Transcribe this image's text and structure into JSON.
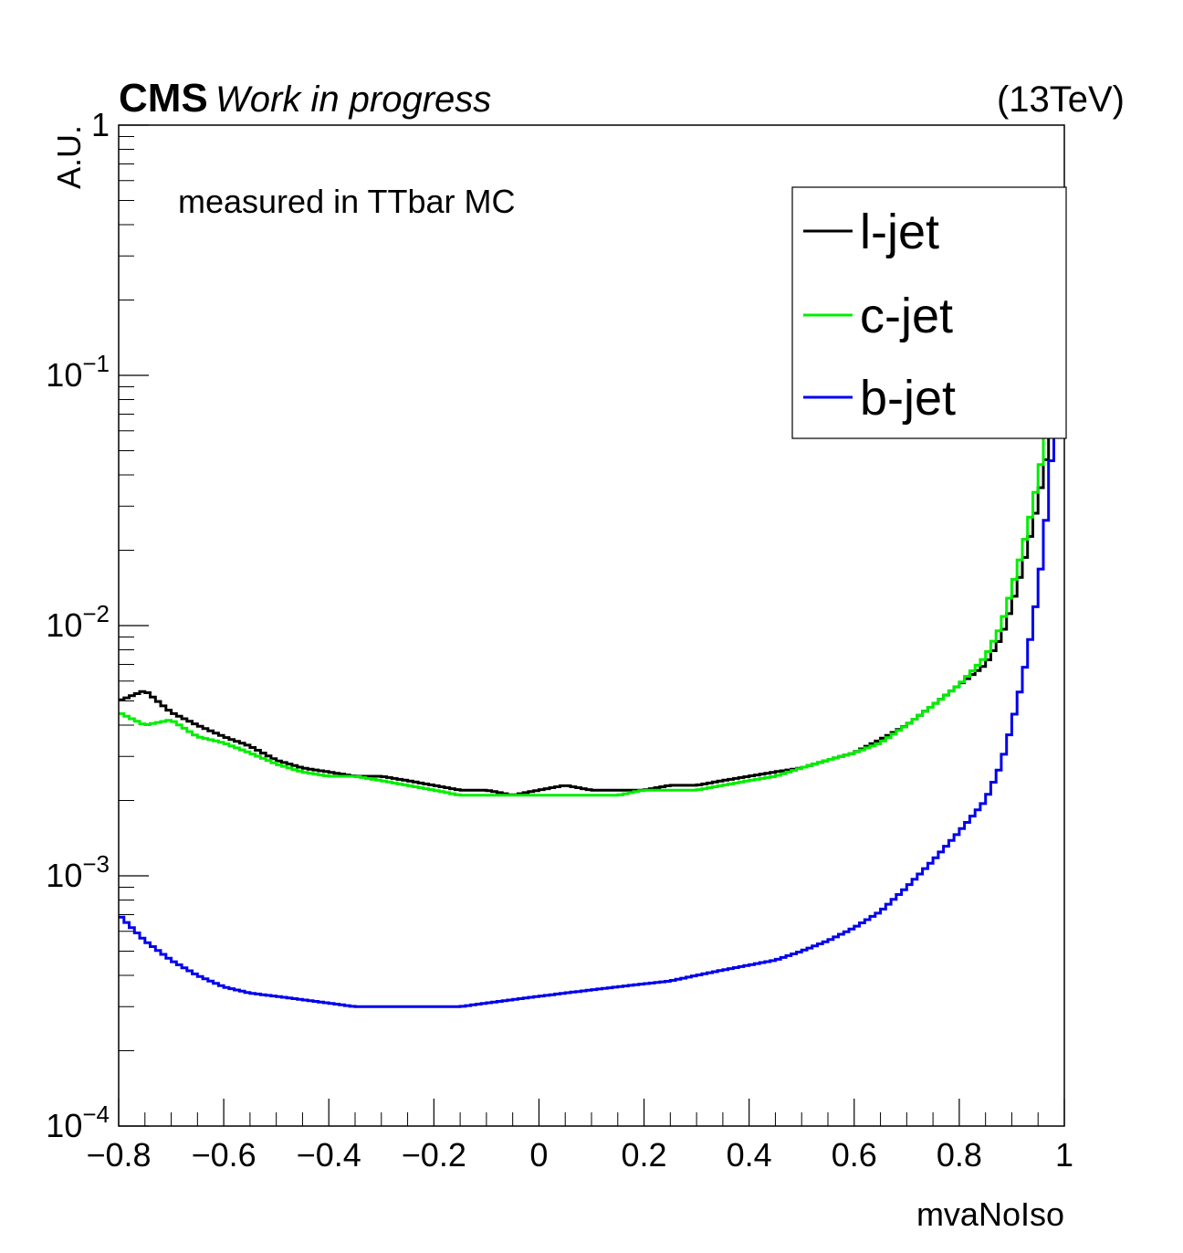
{
  "header": {
    "experiment": "CMS",
    "status": "Work in progress",
    "energy": "(13TeV)"
  },
  "annotation": "measured in TTbar MC",
  "chart_data": {
    "type": "line",
    "style": "step-histogram",
    "xlabel": "mvaNoIso",
    "ylabel": "A.U.",
    "xlim": [
      -0.8,
      1.0
    ],
    "ylim": [
      0.0001,
      1
    ],
    "yscale": "log",
    "x_ticks": [
      -0.8,
      -0.6,
      -0.4,
      -0.2,
      0,
      0.2,
      0.4,
      0.6,
      0.8,
      1
    ],
    "x_tick_labels": [
      "−0.8",
      "−0.6",
      "−0.4",
      "−0.2",
      "0",
      "0.2",
      "0.4",
      "0.6",
      "0.8",
      "1"
    ],
    "y_ticks": [
      {
        "value": 0.0001,
        "base": "10",
        "exp": "−4"
      },
      {
        "value": 0.001,
        "base": "10",
        "exp": "−3"
      },
      {
        "value": 0.01,
        "base": "10",
        "exp": "−2"
      },
      {
        "value": 0.1,
        "base": "10",
        "exp": "−1"
      },
      {
        "value": 1,
        "base": "1",
        "exp": ""
      }
    ],
    "bins": 180,
    "legend_position": "top-right",
    "series": [
      {
        "name": "l-jet",
        "color": "#000000",
        "points": [
          [
            -0.8,
            0.005
          ],
          [
            -0.75,
            0.0055
          ],
          [
            -0.7,
            0.0045
          ],
          [
            -0.65,
            0.004
          ],
          [
            -0.6,
            0.0036
          ],
          [
            -0.55,
            0.0033
          ],
          [
            -0.5,
            0.0029
          ],
          [
            -0.45,
            0.0027
          ],
          [
            -0.4,
            0.0026
          ],
          [
            -0.35,
            0.0025
          ],
          [
            -0.3,
            0.0025
          ],
          [
            -0.25,
            0.0024
          ],
          [
            -0.2,
            0.0023
          ],
          [
            -0.15,
            0.0022
          ],
          [
            -0.1,
            0.0022
          ],
          [
            -0.05,
            0.0021
          ],
          [
            0.0,
            0.0022
          ],
          [
            0.05,
            0.0023
          ],
          [
            0.1,
            0.0022
          ],
          [
            0.15,
            0.0022
          ],
          [
            0.2,
            0.0022
          ],
          [
            0.25,
            0.0023
          ],
          [
            0.3,
            0.0023
          ],
          [
            0.35,
            0.0024
          ],
          [
            0.4,
            0.0025
          ],
          [
            0.45,
            0.0026
          ],
          [
            0.5,
            0.0027
          ],
          [
            0.55,
            0.0029
          ],
          [
            0.6,
            0.0031
          ],
          [
            0.65,
            0.0035
          ],
          [
            0.7,
            0.004
          ],
          [
            0.75,
            0.0048
          ],
          [
            0.8,
            0.0058
          ],
          [
            0.85,
            0.007
          ],
          [
            0.88,
            0.009
          ],
          [
            0.9,
            0.012
          ],
          [
            0.92,
            0.017
          ],
          [
            0.94,
            0.025
          ],
          [
            0.96,
            0.04
          ],
          [
            0.98,
            0.07
          ],
          [
            0.99,
            0.15
          ],
          [
            1.0,
            0.3
          ]
        ]
      },
      {
        "name": "c-jet",
        "color": "#00ee00",
        "points": [
          [
            -0.8,
            0.0045
          ],
          [
            -0.75,
            0.004
          ],
          [
            -0.7,
            0.0042
          ],
          [
            -0.65,
            0.0036
          ],
          [
            -0.6,
            0.0034
          ],
          [
            -0.55,
            0.0031
          ],
          [
            -0.5,
            0.0028
          ],
          [
            -0.45,
            0.0026
          ],
          [
            -0.4,
            0.0025
          ],
          [
            -0.35,
            0.0025
          ],
          [
            -0.3,
            0.0024
          ],
          [
            -0.25,
            0.0023
          ],
          [
            -0.2,
            0.0022
          ],
          [
            -0.15,
            0.0021
          ],
          [
            -0.1,
            0.0021
          ],
          [
            -0.05,
            0.0021
          ],
          [
            0.0,
            0.0021
          ],
          [
            0.05,
            0.0021
          ],
          [
            0.1,
            0.0021
          ],
          [
            0.15,
            0.0021
          ],
          [
            0.2,
            0.0022
          ],
          [
            0.25,
            0.0022
          ],
          [
            0.3,
            0.0022
          ],
          [
            0.35,
            0.0023
          ],
          [
            0.4,
            0.0024
          ],
          [
            0.45,
            0.0025
          ],
          [
            0.5,
            0.0027
          ],
          [
            0.55,
            0.0029
          ],
          [
            0.6,
            0.0031
          ],
          [
            0.65,
            0.0034
          ],
          [
            0.7,
            0.004
          ],
          [
            0.75,
            0.0048
          ],
          [
            0.8,
            0.0058
          ],
          [
            0.85,
            0.0075
          ],
          [
            0.88,
            0.01
          ],
          [
            0.9,
            0.014
          ],
          [
            0.92,
            0.02
          ],
          [
            0.94,
            0.03
          ],
          [
            0.96,
            0.05
          ],
          [
            0.98,
            0.1
          ],
          [
            0.99,
            0.2
          ],
          [
            1.0,
            0.4
          ]
        ]
      },
      {
        "name": "b-jet",
        "color": "#0000ee",
        "points": [
          [
            -0.8,
            0.0007
          ],
          [
            -0.75,
            0.00055
          ],
          [
            -0.7,
            0.00046
          ],
          [
            -0.65,
            0.0004
          ],
          [
            -0.6,
            0.00036
          ],
          [
            -0.55,
            0.00034
          ],
          [
            -0.5,
            0.00033
          ],
          [
            -0.45,
            0.00032
          ],
          [
            -0.4,
            0.00031
          ],
          [
            -0.35,
            0.0003
          ],
          [
            -0.3,
            0.0003
          ],
          [
            -0.25,
            0.0003
          ],
          [
            -0.2,
            0.0003
          ],
          [
            -0.15,
            0.0003
          ],
          [
            -0.1,
            0.00031
          ],
          [
            -0.05,
            0.00032
          ],
          [
            0.0,
            0.00033
          ],
          [
            0.05,
            0.00034
          ],
          [
            0.1,
            0.00035
          ],
          [
            0.15,
            0.00036
          ],
          [
            0.2,
            0.00037
          ],
          [
            0.25,
            0.00038
          ],
          [
            0.3,
            0.0004
          ],
          [
            0.35,
            0.00042
          ],
          [
            0.4,
            0.00044
          ],
          [
            0.45,
            0.00046
          ],
          [
            0.5,
            0.0005
          ],
          [
            0.55,
            0.00055
          ],
          [
            0.6,
            0.00062
          ],
          [
            0.65,
            0.00072
          ],
          [
            0.7,
            0.0009
          ],
          [
            0.75,
            0.00115
          ],
          [
            0.8,
            0.0015
          ],
          [
            0.85,
            0.002
          ],
          [
            0.88,
            0.0028
          ],
          [
            0.9,
            0.004
          ],
          [
            0.92,
            0.006
          ],
          [
            0.94,
            0.01
          ],
          [
            0.96,
            0.02
          ],
          [
            0.98,
            0.06
          ],
          [
            0.99,
            0.2
          ],
          [
            1.0,
            0.85
          ]
        ]
      }
    ]
  }
}
